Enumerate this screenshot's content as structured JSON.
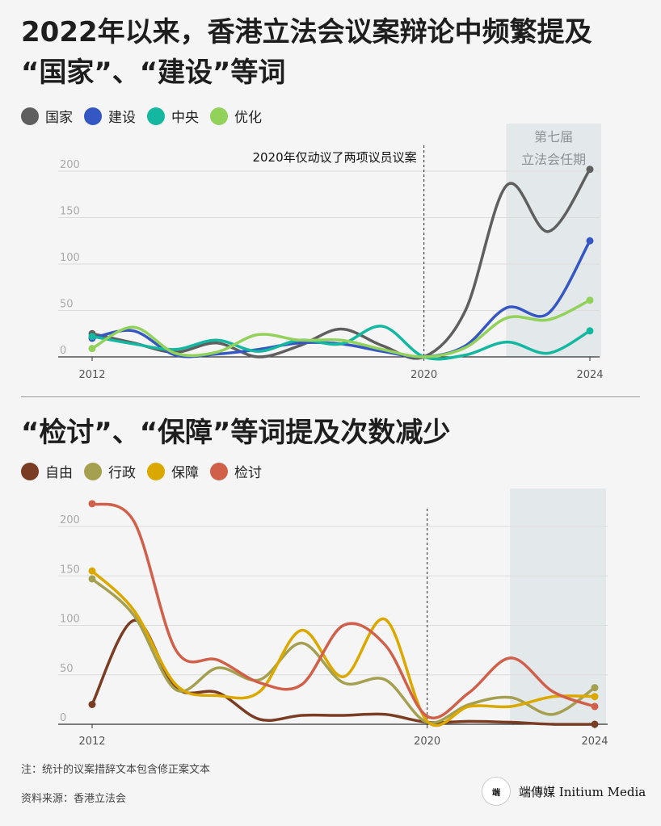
{
  "charts_titles": {
    "top_line1": "2022年以来，香港立法会议案辩论中频繁提及",
    "top_line2": "“国家”、“建设”等词",
    "bottom": "“检讨”、“保障”等词提及次数减少"
  },
  "notes": {
    "footnote": "注：统计的议案措辞文本包含修正案文本",
    "source": "资料来源：香港立法会"
  },
  "brand": {
    "badge": "端",
    "name": "端傳媒 Initium Media"
  },
  "chart_data": [
    {
      "type": "line",
      "title": "2022年以来，香港立法会议案辩论中频繁提及“国家”、“建设”等词",
      "x": [
        2012,
        2013,
        2014,
        2015,
        2016,
        2017,
        2018,
        2019,
        2020,
        2021,
        2022,
        2023,
        2024
      ],
      "xticks": [
        "2012",
        "2020",
        "2024"
      ],
      "ylim": [
        0,
        200
      ],
      "yticks": [
        "0",
        "50",
        "100",
        "150",
        "200"
      ],
      "grid": true,
      "legend_position": "top-left",
      "series": [
        {
          "name": "国家",
          "color": "#5f5f5f",
          "values": [
            25,
            15,
            5,
            15,
            0,
            12,
            30,
            12,
            0,
            50,
            185,
            135,
            202
          ]
        },
        {
          "name": "建设",
          "color": "#3557c4",
          "values": [
            20,
            28,
            2,
            3,
            8,
            15,
            14,
            6,
            0,
            12,
            53,
            47,
            125
          ]
        },
        {
          "name": "中央",
          "color": "#14b8a0",
          "values": [
            22,
            14,
            8,
            18,
            6,
            18,
            14,
            33,
            0,
            2,
            16,
            4,
            28
          ]
        },
        {
          "name": "优化",
          "color": "#92d25b",
          "values": [
            9,
            32,
            4,
            5,
            24,
            18,
            18,
            8,
            0,
            10,
            42,
            40,
            61
          ]
        }
      ],
      "annotations": [
        {
          "text": "2020年仅动议了两项议员议案",
          "x": 2020
        },
        {
          "text_line1": "第七届",
          "text_line2": "立法会任期",
          "x_start": 2022,
          "x_end": 2024
        }
      ]
    },
    {
      "type": "line",
      "title": "“检讨”、“保障”等词提及次数减少",
      "x": [
        2012,
        2013,
        2014,
        2015,
        2016,
        2017,
        2018,
        2019,
        2020,
        2021,
        2022,
        2023,
        2024
      ],
      "xticks": [
        "2012",
        "2020",
        "2024"
      ],
      "ylim": [
        0,
        200
      ],
      "yticks": [
        "0",
        "50",
        "100",
        "150",
        "200"
      ],
      "grid": true,
      "legend_position": "top-left",
      "series": [
        {
          "name": "自由",
          "color": "#7a3c22",
          "values": [
            20,
            105,
            37,
            32,
            5,
            9,
            9,
            10,
            2,
            3,
            2,
            0,
            0
          ]
        },
        {
          "name": "行政",
          "color": "#a5a050",
          "values": [
            147,
            110,
            35,
            57,
            45,
            82,
            42,
            45,
            2,
            20,
            27,
            10,
            37
          ]
        },
        {
          "name": "保障",
          "color": "#dba800",
          "values": [
            155,
            115,
            40,
            29,
            33,
            95,
            48,
            106,
            3,
            18,
            18,
            28,
            28
          ]
        },
        {
          "name": "检讨",
          "color": "#d1604a",
          "values": [
            223,
            205,
            75,
            65,
            42,
            40,
            100,
            80,
            8,
            32,
            67,
            33,
            18
          ]
        }
      ],
      "annotations": [
        {
          "x": 2020
        },
        {
          "x_start": 2022,
          "x_end": 2024
        }
      ]
    }
  ]
}
